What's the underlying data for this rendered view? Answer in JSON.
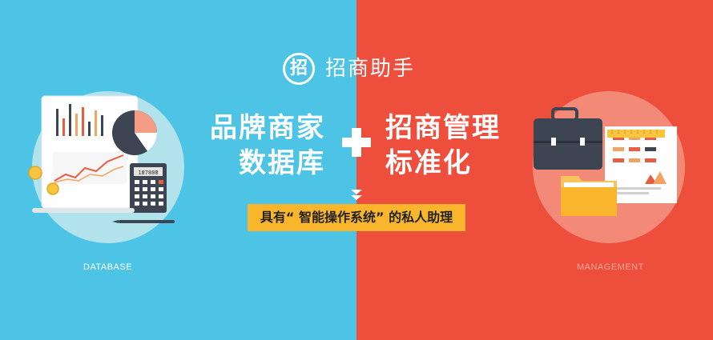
{
  "brand": {
    "logo_char": "招",
    "name": "招商助手"
  },
  "left": {
    "headline_line1": "品牌商家",
    "headline_line2": "数据库",
    "caption": "DATABASE",
    "calculator_display": "187808"
  },
  "right": {
    "headline_line1": "招商管理",
    "headline_line2": "标准化",
    "caption": "MANAGEMENT"
  },
  "banner": {
    "text": "具有“ 智能操作系统” 的私人助理"
  },
  "colors": {
    "left_bg": "#4dc4e6",
    "right_bg": "#ee4e3c",
    "banner_bg": "#f9b62d"
  }
}
